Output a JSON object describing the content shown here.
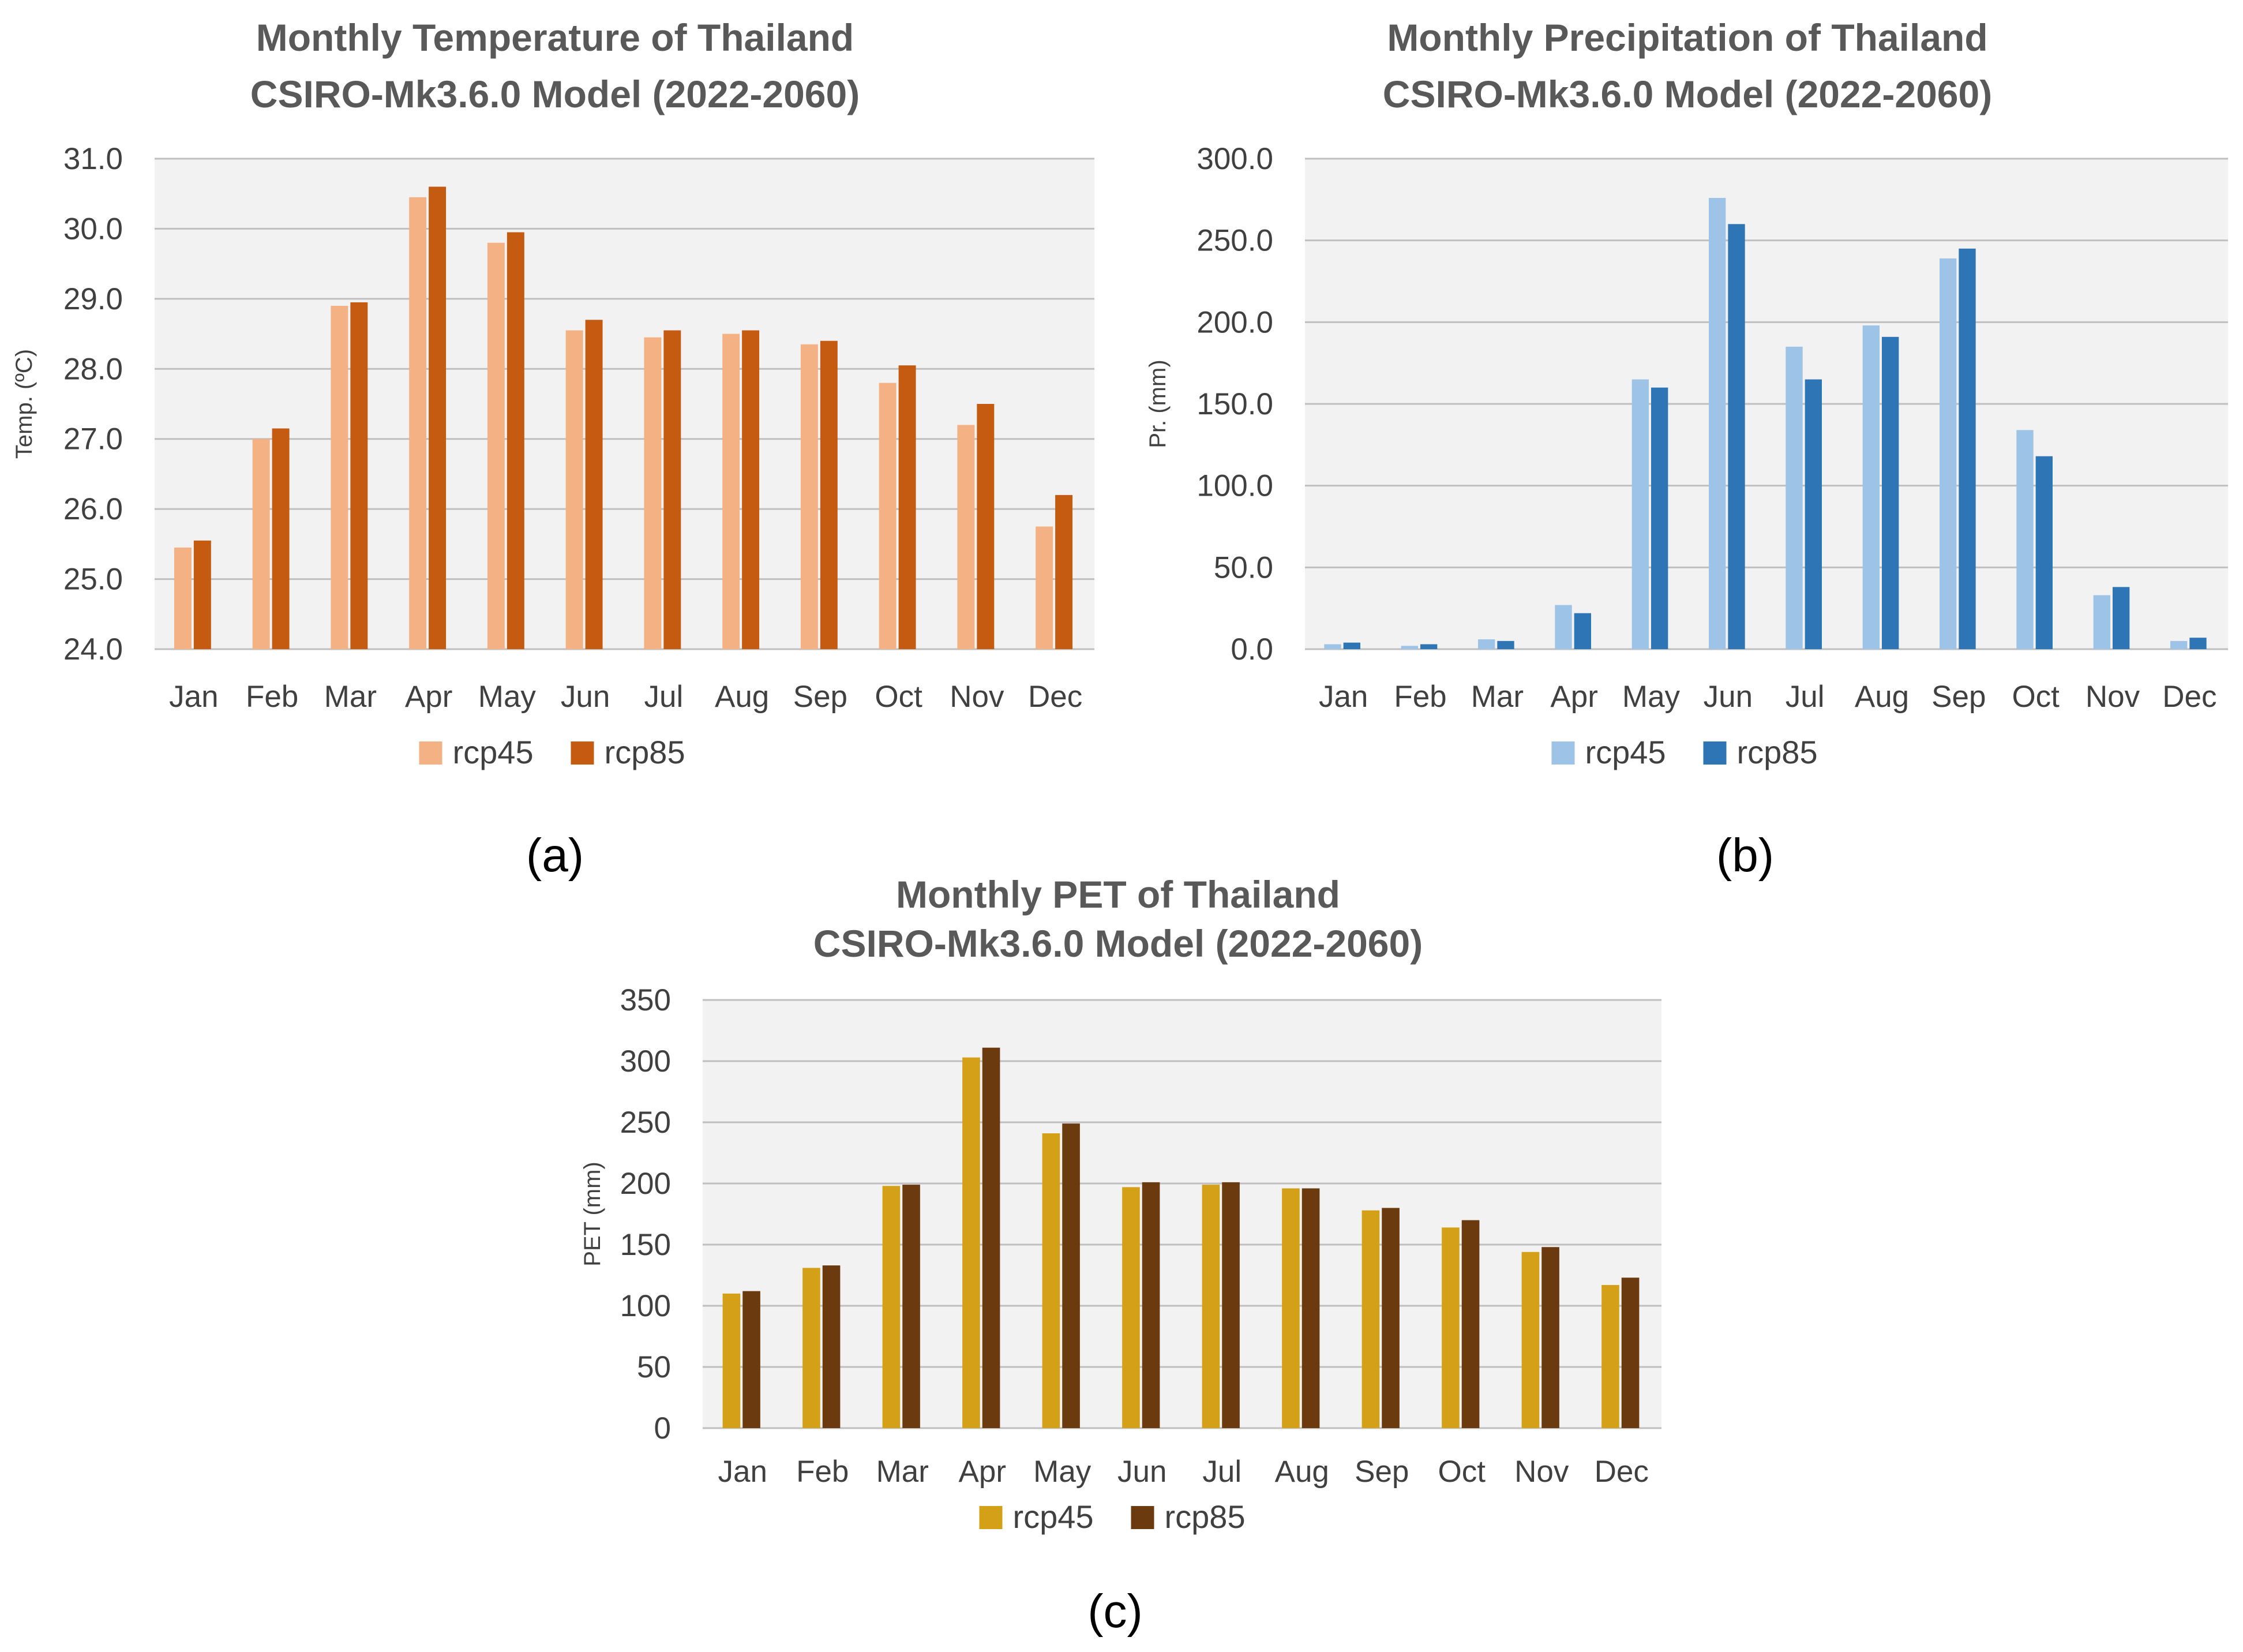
{
  "figure_labels": [
    "(a)",
    "(b)",
    "(c)"
  ],
  "chart_data": [
    {
      "type": "bar",
      "title": [
        "Monthly Temperature of Thailand",
        "CSIRO-Mk3.6.0 Model (2022-2060)"
      ],
      "xlabel": "",
      "ylabel": "Temp. (ºC)",
      "ylim": [
        24.0,
        31.0
      ],
      "yticks": [
        "24.0",
        "25.0",
        "26.0",
        "27.0",
        "28.0",
        "29.0",
        "30.0",
        "31.0"
      ],
      "grid": true,
      "legend_position": "bottom",
      "categories": [
        "Jan",
        "Feb",
        "Mar",
        "Apr",
        "May",
        "Jun",
        "Jul",
        "Aug",
        "Sep",
        "Oct",
        "Nov",
        "Dec"
      ],
      "series": [
        {
          "name": "rcp45",
          "color": "#F4B183",
          "values": [
            25.45,
            27.0,
            28.9,
            30.45,
            29.8,
            28.55,
            28.45,
            28.5,
            28.35,
            27.8,
            27.2,
            25.75
          ]
        },
        {
          "name": "rcp85",
          "color": "#C55A11",
          "values": [
            25.55,
            27.15,
            28.95,
            30.6,
            29.95,
            28.7,
            28.55,
            28.55,
            28.4,
            28.05,
            27.5,
            26.2
          ]
        }
      ]
    },
    {
      "type": "bar",
      "title": [
        "Monthly Precipitation of Thailand",
        "CSIRO-Mk3.6.0 Model (2022-2060)"
      ],
      "xlabel": "",
      "ylabel": "Pr. (mm)",
      "ylim": [
        0,
        300
      ],
      "yticks": [
        "0.0",
        "50.0",
        "100.0",
        "150.0",
        "200.0",
        "250.0",
        "300.0"
      ],
      "grid": true,
      "legend_position": "bottom",
      "categories": [
        "Jan",
        "Feb",
        "Mar",
        "Apr",
        "May",
        "Jun",
        "Jul",
        "Aug",
        "Sep",
        "Oct",
        "Nov",
        "Dec"
      ],
      "series": [
        {
          "name": "rcp45",
          "color": "#9DC3E6",
          "values": [
            3,
            2,
            6,
            27,
            165,
            276,
            185,
            198,
            239,
            134,
            33,
            5
          ]
        },
        {
          "name": "rcp85",
          "color": "#2E75B6",
          "values": [
            4,
            3,
            5,
            22,
            160,
            260,
            165,
            191,
            245,
            118,
            38,
            7
          ]
        }
      ]
    },
    {
      "type": "bar",
      "title": [
        "Monthly PET of Thailand",
        "CSIRO-Mk3.6.0 Model (2022-2060)"
      ],
      "xlabel": "",
      "ylabel": "PET (mm)",
      "ylim": [
        0,
        350
      ],
      "yticks": [
        "0",
        "50",
        "100",
        "150",
        "200",
        "250",
        "300",
        "350"
      ],
      "grid": true,
      "legend_position": "bottom",
      "categories": [
        "Jan",
        "Feb",
        "Mar",
        "Apr",
        "May",
        "Jun",
        "Jul",
        "Aug",
        "Sep",
        "Oct",
        "Nov",
        "Dec"
      ],
      "series": [
        {
          "name": "rcp45",
          "color": "#D4A017",
          "values": [
            110,
            131,
            198,
            303,
            241,
            197,
            199,
            196,
            178,
            164,
            144,
            117
          ]
        },
        {
          "name": "rcp85",
          "color": "#6B3A0E",
          "values": [
            112,
            133,
            199,
            311,
            249,
            201,
            201,
            196,
            180,
            170,
            148,
            123
          ]
        }
      ]
    }
  ]
}
